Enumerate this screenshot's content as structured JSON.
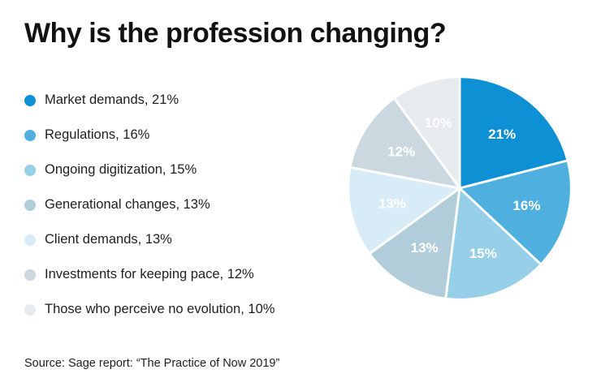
{
  "title": "Why is the profession changing?",
  "source": "Source: Sage report: “The Practice of Now 2019”",
  "legend_items": [
    "Market demands, 21%",
    "Regulations, 16%",
    "Ongoing digitization, 15%",
    "Generational changes, 13%",
    "Client demands, 13%",
    "Investments for keeping pace, 12%",
    "Those who perceive no evolution, 10%"
  ],
  "chart_data": {
    "type": "pie",
    "title": "Why is the profession changing?",
    "categories": [
      "Market demands",
      "Regulations",
      "Ongoing digitization",
      "Generational changes",
      "Client demands",
      "Investments for keeping pace",
      "Those who perceive no evolution"
    ],
    "values": [
      21,
      16,
      15,
      13,
      13,
      12,
      10
    ],
    "value_unit": "%",
    "colors": [
      "#0d90d4",
      "#4fafdf",
      "#97cfe9",
      "#b1cdda",
      "#d8ecf8",
      "#cbd8df",
      "#e7ebed"
    ],
    "slice_label_color": "#ffffff",
    "start_angle_deg": -90,
    "direction": "clockwise",
    "legend_position": "left",
    "separator_color": "#ffffff",
    "source": "Source: Sage report: “The Practice of Now 2019”"
  }
}
